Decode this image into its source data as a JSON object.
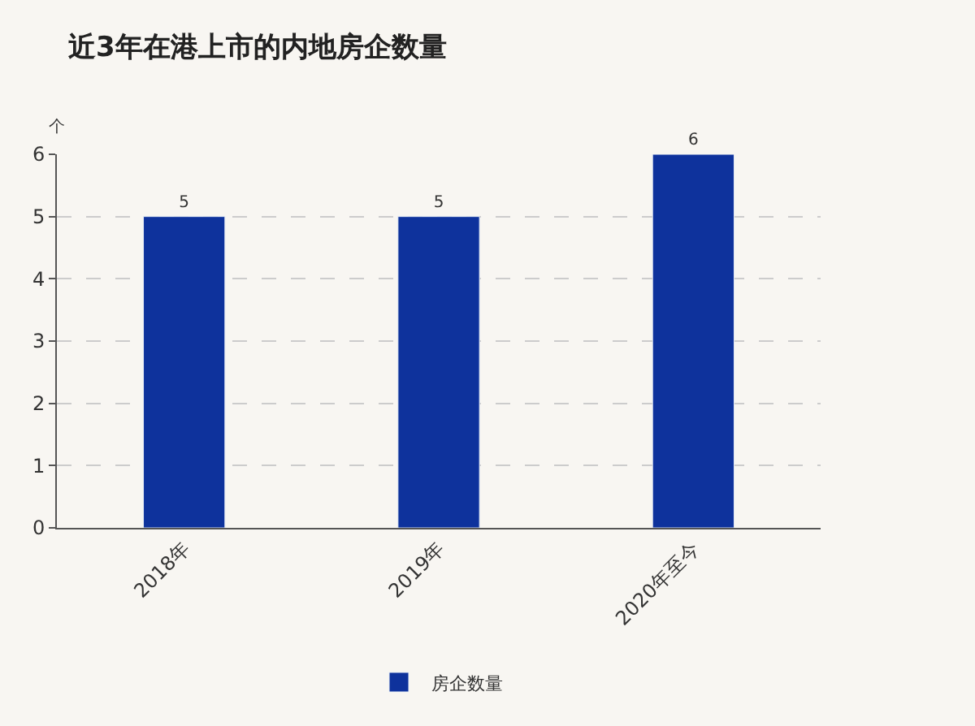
{
  "chart_data": {
    "type": "bar",
    "title": "近3年在港上市的内地房企数量",
    "ylabel": "个",
    "categories": [
      "2018年",
      "2019年",
      "2020年至今"
    ],
    "series": [
      {
        "name": "房企数量",
        "color": "#0e329c",
        "values": [
          5,
          5,
          6
        ]
      }
    ],
    "ylim": [
      0,
      6
    ],
    "yticks": [
      0,
      1,
      2,
      3,
      4,
      5,
      6
    ],
    "grid": "y",
    "legend": "bottom",
    "data_labels": true
  }
}
